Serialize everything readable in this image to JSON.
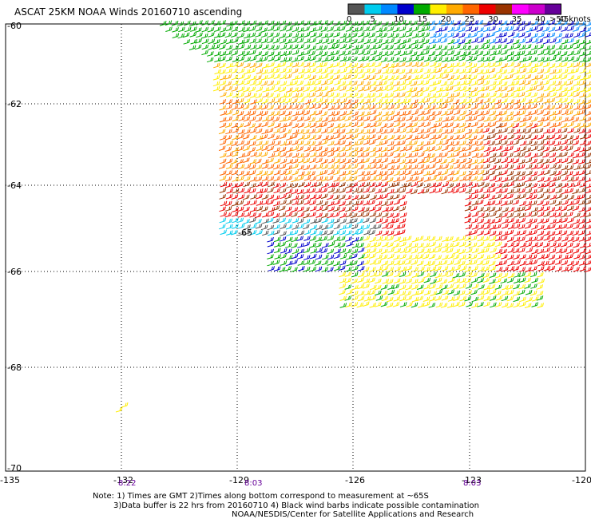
{
  "title": "ASCAT 25KM NOAA Winds 20160710 ascending",
  "legend": {
    "unit_label": ">50 knots",
    "ticks": [
      "0",
      "5",
      "10",
      "15",
      "20",
      "25",
      "30",
      "35",
      "40",
      "45"
    ],
    "colors": [
      "#555555",
      "#00ccee",
      "#0088ff",
      "#0000cc",
      "#00aa00",
      "#ffee00",
      "#ffaa00",
      "#ff6600",
      "#ee0000",
      "#993300",
      "#ff00ff",
      "#cc00cc",
      "#660099"
    ]
  },
  "axes": {
    "lat_labels": [
      "-60",
      "-62",
      "-64",
      "-65",
      "-66",
      "-68",
      "-70"
    ],
    "lon_labels": [
      "-135",
      "-132",
      "-129",
      "-126",
      "-123",
      "-120"
    ],
    "time_labels": [
      "8:22",
      "8:03",
      "8:03"
    ]
  },
  "notes": [
    "Note: 1) Times are GMT 2)Times along bottom correspond to measurement at ~65S",
    "3)Data buffer is 22 hrs from 20160710 4) Black wind barbs indicate possible contamination",
    "NOAA/NESDIS/Center for Satellite Applications and Research"
  ]
}
